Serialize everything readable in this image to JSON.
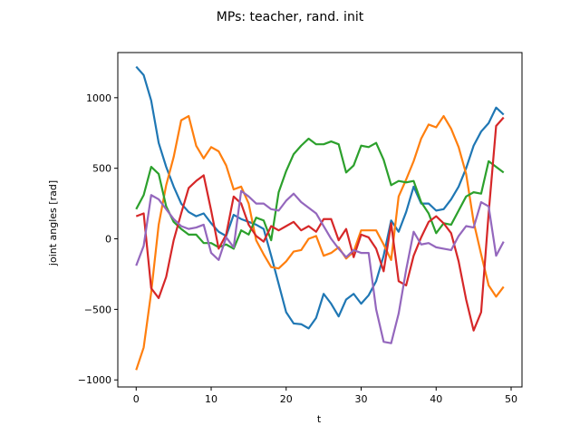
{
  "chart_data": {
    "type": "line",
    "title": "MPs: teacher, rand. init",
    "xlabel": "t",
    "ylabel": "joint angles [rad]",
    "xlim": [
      -2.45,
      51.45
    ],
    "ylim": [
      -1050,
      1320
    ],
    "xticks": [
      0,
      10,
      20,
      30,
      40,
      50
    ],
    "yticks": [
      -1000,
      -500,
      0,
      500,
      1000
    ],
    "xtick_labels": [
      "0",
      "10",
      "20",
      "30",
      "40",
      "50"
    ],
    "ytick_labels": [
      "−1000",
      "−500",
      "0",
      "500",
      "1000"
    ],
    "grid": false,
    "legend": false,
    "x": [
      0,
      1,
      2,
      3,
      4,
      5,
      6,
      7,
      8,
      9,
      10,
      11,
      12,
      13,
      14,
      15,
      16,
      17,
      18,
      19,
      20,
      21,
      22,
      23,
      24,
      25,
      26,
      27,
      28,
      29,
      30,
      31,
      32,
      33,
      34,
      35,
      36,
      37,
      38,
      39,
      40,
      41,
      42,
      43,
      44,
      45,
      46,
      47,
      48,
      49
    ],
    "series": [
      {
        "color": "#1f77b4",
        "values": [
          1220,
          1160,
          980,
          680,
          510,
          370,
          250,
          190,
          160,
          180,
          110,
          50,
          20,
          170,
          140,
          120,
          100,
          70,
          -120,
          -320,
          -520,
          -600,
          -605,
          -635,
          -560,
          -390,
          -460,
          -550,
          -430,
          -390,
          -460,
          -400,
          -300,
          -120,
          130,
          50,
          190,
          370,
          250,
          250,
          200,
          210,
          280,
          370,
          500,
          660,
          760,
          820,
          930,
          880
        ]
      },
      {
        "color": "#ff7f0e",
        "values": [
          -930,
          -770,
          -380,
          100,
          380,
          580,
          840,
          870,
          660,
          570,
          650,
          620,
          520,
          350,
          370,
          250,
          -10,
          -110,
          -200,
          -210,
          -160,
          -90,
          -80,
          0,
          20,
          -120,
          -100,
          -60,
          -140,
          -90,
          60,
          60,
          60,
          -40,
          -150,
          300,
          420,
          550,
          710,
          810,
          790,
          870,
          780,
          650,
          460,
          120,
          -110,
          -330,
          -410,
          -340
        ]
      },
      {
        "color": "#2ca02c",
        "values": [
          210,
          310,
          510,
          460,
          230,
          120,
          70,
          30,
          30,
          -30,
          -30,
          -60,
          -40,
          -70,
          60,
          30,
          150,
          130,
          -10,
          330,
          480,
          600,
          660,
          710,
          670,
          670,
          690,
          670,
          470,
          520,
          660,
          650,
          680,
          560,
          380,
          410,
          400,
          410,
          260,
          180,
          40,
          110,
          100,
          200,
          300,
          330,
          320,
          550,
          510,
          470
        ]
      },
      {
        "color": "#d62728",
        "values": [
          160,
          180,
          -350,
          -420,
          -270,
          -10,
          180,
          360,
          410,
          450,
          200,
          -70,
          30,
          300,
          250,
          100,
          20,
          -20,
          90,
          60,
          90,
          120,
          60,
          90,
          50,
          140,
          140,
          -10,
          70,
          -130,
          30,
          10,
          -70,
          -230,
          110,
          -300,
          -330,
          -120,
          10,
          120,
          160,
          110,
          40,
          -160,
          -430,
          -650,
          -520,
          180,
          800,
          860
        ]
      },
      {
        "color": "#9467bd",
        "values": [
          -190,
          -50,
          310,
          280,
          210,
          140,
          90,
          70,
          80,
          100,
          -100,
          -150,
          10,
          -60,
          340,
          300,
          250,
          250,
          210,
          200,
          270,
          320,
          260,
          220,
          180,
          90,
          0,
          -70,
          -130,
          -80,
          -100,
          -100,
          -500,
          -730,
          -740,
          -530,
          -220,
          50,
          -40,
          -30,
          -60,
          -70,
          -80,
          20,
          90,
          80,
          260,
          230,
          -120,
          -20
        ]
      }
    ]
  }
}
